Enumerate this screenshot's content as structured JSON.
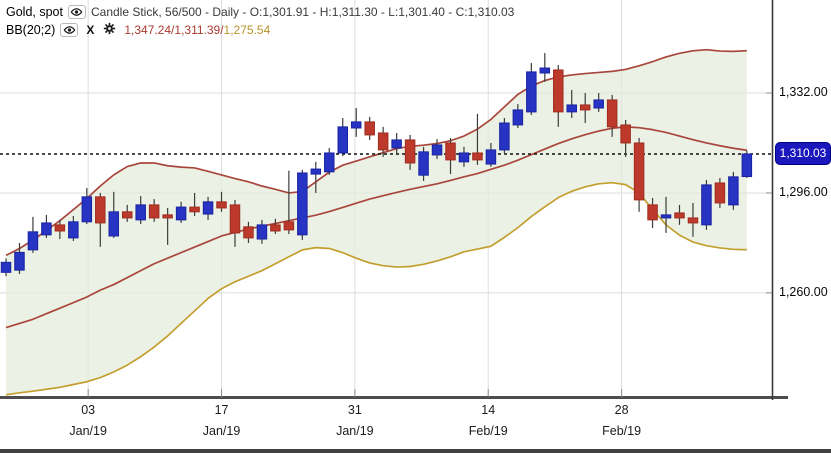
{
  "header": {
    "title": "Gold, spot",
    "series_info": "Candle Stick, 56/500 - Daily - O:1,301.91 - H:1,311.30 - L:1,301.40 - C:1,310.03",
    "indicator": "BB(20;2)",
    "bb_values_red": "1,347.24/1,311.39/",
    "bb_values_gold": "1,275.54",
    "remove_label": "X"
  },
  "colors": {
    "candle_up": "#2633c3",
    "candle_up_border": "#1a24a0",
    "candle_down": "#bc392b",
    "candle_down_border": "#9e2d20",
    "band_line_red": "#a9463c",
    "band_line_gold": "#c39f2f",
    "band_fill": "#e3ecda",
    "wick": "#3c3c3c",
    "grid": "#dedede",
    "axis": "#3a3a3a",
    "bottom_axis": "#4d4d4d",
    "dotted_line": "#111111",
    "price_tag_bg": "#1a17bc"
  },
  "chart_data": {
    "type": "candlestick",
    "title": "Gold, spot - Daily candlestick with Bollinger Bands BB(20;2)",
    "visible_candles": 56,
    "total_candles": 500,
    "y_axis": {
      "range": [
        1222.5,
        1365.5
      ],
      "ticks": [
        {
          "price": 1332.0,
          "label": "1,332.00"
        },
        {
          "price": 1296.0,
          "label": "1,296.00"
        },
        {
          "price": 1260.0,
          "label": "1,260.00"
        }
      ]
    },
    "x_axis": {
      "ticks": [
        {
          "index": 6.1,
          "day": "03",
          "month": "Jan/19"
        },
        {
          "index": 16.0,
          "day": "17",
          "month": "Jan/19"
        },
        {
          "index": 25.9,
          "day": "31",
          "month": "Jan/19"
        },
        {
          "index": 35.8,
          "day": "14",
          "month": "Feb/19"
        },
        {
          "index": 45.7,
          "day": "28",
          "month": "Feb/19"
        }
      ]
    },
    "price_line": {
      "price": 1310.03,
      "label": "1,310.03"
    },
    "last_ohlc": {
      "open": 1301.91,
      "high": 1311.3,
      "low": 1301.4,
      "close": 1310.03
    },
    "ohlc": [
      [
        1267.4,
        1272.4,
        1266.0,
        1271.0
      ],
      [
        1268.2,
        1278.0,
        1266.8,
        1274.6
      ],
      [
        1275.5,
        1287.4,
        1274.4,
        1282.0
      ],
      [
        1280.9,
        1288.1,
        1279.8,
        1285.2
      ],
      [
        1284.5,
        1286.3,
        1279.4,
        1282.3
      ],
      [
        1279.8,
        1287.7,
        1278.7,
        1285.6
      ],
      [
        1285.6,
        1297.8,
        1284.8,
        1294.6
      ],
      [
        1294.6,
        1296.0,
        1276.6,
        1285.2
      ],
      [
        1280.5,
        1296.4,
        1279.8,
        1289.2
      ],
      [
        1289.2,
        1291.7,
        1285.6,
        1287.0
      ],
      [
        1286.3,
        1294.9,
        1284.8,
        1291.7
      ],
      [
        1291.7,
        1293.8,
        1285.6,
        1287.0
      ],
      [
        1288.1,
        1290.6,
        1277.3,
        1287.0
      ],
      [
        1286.3,
        1292.8,
        1285.2,
        1290.9
      ],
      [
        1290.9,
        1296.0,
        1287.7,
        1289.2
      ],
      [
        1288.4,
        1294.6,
        1286.3,
        1292.8
      ],
      [
        1292.8,
        1296.4,
        1289.2,
        1290.6
      ],
      [
        1291.7,
        1293.5,
        1276.6,
        1281.6
      ],
      [
        1283.8,
        1285.6,
        1278.0,
        1279.8
      ],
      [
        1279.4,
        1286.3,
        1277.7,
        1284.5
      ],
      [
        1284.5,
        1286.7,
        1281.2,
        1282.3
      ],
      [
        1285.6,
        1304.0,
        1281.2,
        1282.7
      ],
      [
        1280.9,
        1304.3,
        1279.1,
        1303.2
      ],
      [
        1302.8,
        1307.2,
        1296.0,
        1304.6
      ],
      [
        1303.6,
        1312.2,
        1302.5,
        1310.4
      ],
      [
        1310.4,
        1323.0,
        1309.3,
        1319.8
      ],
      [
        1319.4,
        1326.6,
        1316.2,
        1321.6
      ],
      [
        1321.6,
        1323.4,
        1315.1,
        1316.9
      ],
      [
        1317.6,
        1319.8,
        1309.0,
        1311.5
      ],
      [
        1312.2,
        1317.6,
        1309.7,
        1315.1
      ],
      [
        1315.1,
        1316.9,
        1304.3,
        1306.8
      ],
      [
        1302.4,
        1312.6,
        1300.3,
        1310.8
      ],
      [
        1309.7,
        1315.4,
        1308.2,
        1313.3
      ],
      [
        1314.0,
        1315.8,
        1302.8,
        1307.9
      ],
      [
        1307.2,
        1312.6,
        1305.4,
        1310.4
      ],
      [
        1310.4,
        1324.5,
        1306.1,
        1307.9
      ],
      [
        1306.4,
        1314.0,
        1305.4,
        1311.5
      ],
      [
        1311.5,
        1323.0,
        1310.4,
        1321.2
      ],
      [
        1320.5,
        1328.0,
        1319.4,
        1325.9
      ],
      [
        1325.2,
        1342.8,
        1324.1,
        1339.6
      ],
      [
        1339.2,
        1346.4,
        1336.0,
        1341.0
      ],
      [
        1340.3,
        1342.1,
        1319.8,
        1325.2
      ],
      [
        1325.2,
        1333.1,
        1323.0,
        1327.7
      ],
      [
        1327.7,
        1332.0,
        1321.2,
        1325.9
      ],
      [
        1326.6,
        1332.0,
        1325.2,
        1329.5
      ],
      [
        1329.5,
        1331.3,
        1316.2,
        1319.8
      ],
      [
        1320.5,
        1322.3,
        1309.0,
        1314.0
      ],
      [
        1314.0,
        1315.8,
        1289.2,
        1293.5
      ],
      [
        1291.7,
        1294.2,
        1283.4,
        1286.3
      ],
      [
        1287.0,
        1294.6,
        1281.6,
        1288.1
      ],
      [
        1288.8,
        1291.7,
        1284.5,
        1287.0
      ],
      [
        1287.0,
        1292.4,
        1280.2,
        1285.2
      ],
      [
        1284.5,
        1300.7,
        1282.7,
        1298.9
      ],
      [
        1299.6,
        1301.4,
        1290.6,
        1292.4
      ],
      [
        1291.7,
        1303.6,
        1289.9,
        1301.8
      ],
      [
        1301.91,
        1311.3,
        1301.4,
        1310.03
      ]
    ],
    "bollinger": {
      "upper": [
        1273.5,
        1276.0,
        1279.0,
        1282.5,
        1286.0,
        1290.0,
        1294.0,
        1298.5,
        1302.5,
        1305.5,
        1306.8,
        1306.8,
        1305.8,
        1305.3,
        1305.0,
        1303.8,
        1302.5,
        1301.2,
        1300.0,
        1298.5,
        1297.3,
        1296.0,
        1296.5,
        1300.0,
        1303.5,
        1306.0,
        1307.5,
        1309.0,
        1310.5,
        1312.0,
        1312.8,
        1313.2,
        1313.8,
        1314.8,
        1316.5,
        1319.0,
        1322.5,
        1327.0,
        1331.5,
        1334.5,
        1336.5,
        1337.8,
        1338.5,
        1339.0,
        1339.4,
        1339.8,
        1340.5,
        1341.8,
        1343.3,
        1345.0,
        1346.3,
        1347.2,
        1347.6,
        1347.1,
        1347.0,
        1347.24
      ],
      "middle": [
        1247.5,
        1249.0,
        1250.5,
        1252.5,
        1254.5,
        1256.5,
        1258.5,
        1261.0,
        1263.0,
        1265.5,
        1268.0,
        1270.5,
        1272.5,
        1274.5,
        1276.5,
        1278.5,
        1280.5,
        1281.8,
        1283.0,
        1284.0,
        1285.0,
        1286.0,
        1287.0,
        1288.0,
        1289.3,
        1290.8,
        1292.3,
        1293.8,
        1295.0,
        1296.2,
        1297.3,
        1298.3,
        1299.3,
        1300.5,
        1301.8,
        1303.0,
        1304.5,
        1306.0,
        1307.8,
        1309.8,
        1311.8,
        1313.8,
        1315.5,
        1317.0,
        1318.3,
        1319.3,
        1319.8,
        1319.5,
        1318.8,
        1317.8,
        1316.5,
        1315.2,
        1314.0,
        1313.0,
        1312.1,
        1311.39
      ],
      "lower": [
        1223.3,
        1224.0,
        1224.6,
        1225.3,
        1226.0,
        1227.0,
        1228.0,
        1229.5,
        1231.5,
        1234.0,
        1237.0,
        1240.5,
        1244.5,
        1249.0,
        1253.5,
        1258.0,
        1261.5,
        1264.0,
        1266.0,
        1268.0,
        1270.5,
        1273.0,
        1275.5,
        1276.3,
        1276.0,
        1274.5,
        1272.5,
        1270.8,
        1269.8,
        1269.3,
        1269.5,
        1270.3,
        1271.5,
        1273.0,
        1274.8,
        1275.8,
        1276.8,
        1280.0,
        1283.5,
        1287.5,
        1291.0,
        1294.3,
        1296.6,
        1298.2,
        1299.3,
        1299.7,
        1299.0,
        1296.0,
        1290.0,
        1284.5,
        1280.8,
        1278.3,
        1277.0,
        1276.2,
        1275.7,
        1275.54
      ]
    }
  }
}
